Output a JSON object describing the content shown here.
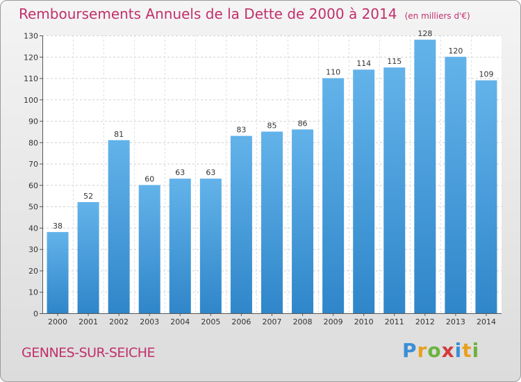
{
  "chart_data": {
    "type": "bar",
    "title": "Remboursements Annuels de la Dette de 2000 à 2014",
    "subtitle": "(en milliers d'€)",
    "categories": [
      "2000",
      "2001",
      "2002",
      "2003",
      "2004",
      "2005",
      "2006",
      "2007",
      "2008",
      "2009",
      "2010",
      "2011",
      "2012",
      "2013",
      "2014"
    ],
    "values": [
      38,
      52,
      81,
      60,
      63,
      63,
      83,
      85,
      86,
      110,
      114,
      115,
      128,
      120,
      109
    ],
    "ylim": [
      0,
      130
    ],
    "yticks": [
      0,
      10,
      20,
      30,
      40,
      50,
      60,
      70,
      80,
      90,
      100,
      110,
      120,
      130
    ],
    "xlabel": "",
    "ylabel": "",
    "grid": true,
    "colors": {
      "bar_light": "#63b3ea",
      "bar_dark": "#2f86c9",
      "title": "#c0306a"
    }
  },
  "footer": {
    "commune": "GENNES-SUR-SEICHE",
    "logo_letters": [
      {
        "ch": "P",
        "color": "#3a8fd6"
      },
      {
        "ch": "r",
        "color": "#e8a020"
      },
      {
        "ch": "o",
        "color": "#6cb33f"
      },
      {
        "ch": "x",
        "color": "#d33b3b"
      },
      {
        "ch": "i",
        "color": "#3a8fd6"
      },
      {
        "ch": "t",
        "color": "#e8a020"
      },
      {
        "ch": "i",
        "color": "#6cb33f"
      }
    ]
  }
}
